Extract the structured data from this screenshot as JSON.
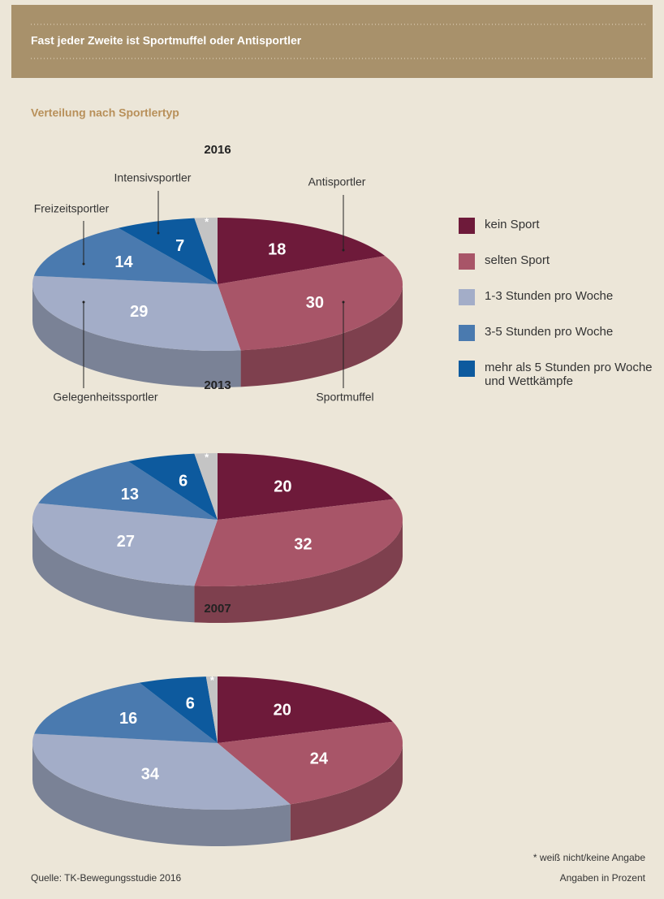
{
  "header": {
    "title": "Fast jeder Zweite ist Sportmuffel oder Antisportler"
  },
  "subtitle": "Verteilung nach Sportlertyp",
  "chart_data": [
    {
      "type": "pie",
      "title": "2016",
      "categories": [
        "kein Sport",
        "selten Sport",
        "1-3 Stunden pro Woche",
        "3-5 Stunden pro Woche",
        "mehr als 5 Stunden pro Woche und Wettkämpfe",
        null
      ],
      "colors": [
        "#6e1a3a",
        "#a85568",
        "#a3adc8",
        "#4a7aaf",
        "#0d5a9e",
        "#c4c4c4"
      ],
      "values": [
        18,
        30,
        29,
        14,
        7,
        2
      ],
      "value_labels": [
        "18",
        "30",
        "29",
        "14",
        "7",
        "*"
      ],
      "annotations": [
        "Antisportler",
        "Sportmuffel",
        "Gelegenheitssportler",
        "Freizeitsportler",
        "Intensivsportler"
      ]
    },
    {
      "type": "pie",
      "title": "2013",
      "categories": [
        "kein Sport",
        "selten Sport",
        "1-3 Stunden pro Woche",
        "3-5 Stunden pro Woche",
        "mehr als 5 Stunden pro Woche und Wettkämpfe",
        null
      ],
      "colors": [
        "#6e1a3a",
        "#a85568",
        "#a3adc8",
        "#4a7aaf",
        "#0d5a9e",
        "#c4c4c4"
      ],
      "values": [
        20,
        32,
        27,
        13,
        6,
        2
      ],
      "value_labels": [
        "20",
        "32",
        "27",
        "13",
        "6",
        "*"
      ]
    },
    {
      "type": "pie",
      "title": "2007",
      "categories": [
        "kein Sport",
        "selten Sport",
        "1-3 Stunden pro Woche",
        "3-5 Stunden pro Woche",
        "mehr als 5 Stunden pro Woche und Wettkämpfe",
        null
      ],
      "colors": [
        "#6e1a3a",
        "#a85568",
        "#a3adc8",
        "#4a7aaf",
        "#0d5a9e",
        "#c4c4c4"
      ],
      "values": [
        20,
        24,
        34,
        16,
        6,
        1
      ],
      "value_labels": [
        "20",
        "24",
        "34",
        "16",
        "6",
        "*"
      ]
    }
  ],
  "source": "Quelle: TK-Bewegungsstudie 2016",
  "notes": [
    "* weiß nicht/keine Angabe",
    "Angaben in Prozent"
  ]
}
